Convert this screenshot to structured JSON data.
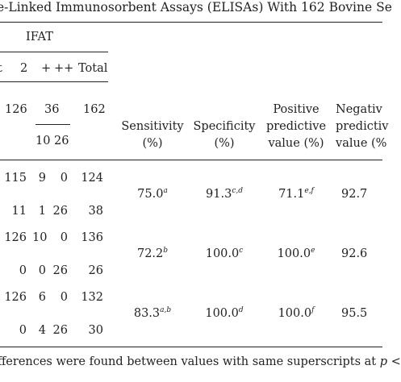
{
  "caption": "e-Linked Immunosorbent Assays (ELISAs) With 162 Bovine Se",
  "header": {
    "ifat": "IFAT",
    "cut_left": "t",
    "col_2": "2",
    "col_plus": "+",
    "col_plusplus": "++",
    "col_total": "Total",
    "n_neg": "126",
    "n_pos": "36",
    "n_total": "162",
    "n_plus": "10",
    "n_plusplus": "26",
    "sensitivity": [
      "Sensitivity",
      "(%)"
    ],
    "specificity": [
      "Specificity",
      "(%)"
    ],
    "ppv": [
      "Positive",
      "predictive",
      "value (%)"
    ],
    "npv": [
      "Negativ",
      "predictiv",
      "value (%"
    ]
  },
  "rows": [
    {
      "neg": "115",
      "plus": "9",
      "plusplus": "0",
      "total": "124"
    },
    {
      "neg": "11",
      "plus": "1",
      "plusplus": "26",
      "total": "38"
    },
    {
      "neg": "126",
      "plus": "10",
      "plusplus": "0",
      "total": "136"
    },
    {
      "neg": "0",
      "plus": "0",
      "plusplus": "26",
      "total": "26"
    },
    {
      "neg": "126",
      "plus": "6",
      "plusplus": "0",
      "total": "132"
    },
    {
      "neg": "0",
      "plus": "4",
      "plusplus": "26",
      "total": "30"
    }
  ],
  "stats": [
    {
      "sens": "75.0",
      "sens_sup": "a",
      "spec": "91.3",
      "spec_sup": "c,d",
      "ppv": "71.1",
      "ppv_sup": "e,f",
      "npv": "92.7"
    },
    {
      "sens": "72.2",
      "sens_sup": "b",
      "spec": "100.0",
      "spec_sup": "c",
      "ppv": "100.0",
      "ppv_sup": "e",
      "npv": "92.6"
    },
    {
      "sens": "83.3",
      "sens_sup": "a,b",
      "spec": "100.0",
      "spec_sup": "d",
      "ppv": "100.0",
      "ppv_sup": "f",
      "npv": "95.5"
    }
  ],
  "footnote": {
    "text": "fferences were found between values with same superscripts at ",
    "p": "p",
    "tail": " <"
  }
}
